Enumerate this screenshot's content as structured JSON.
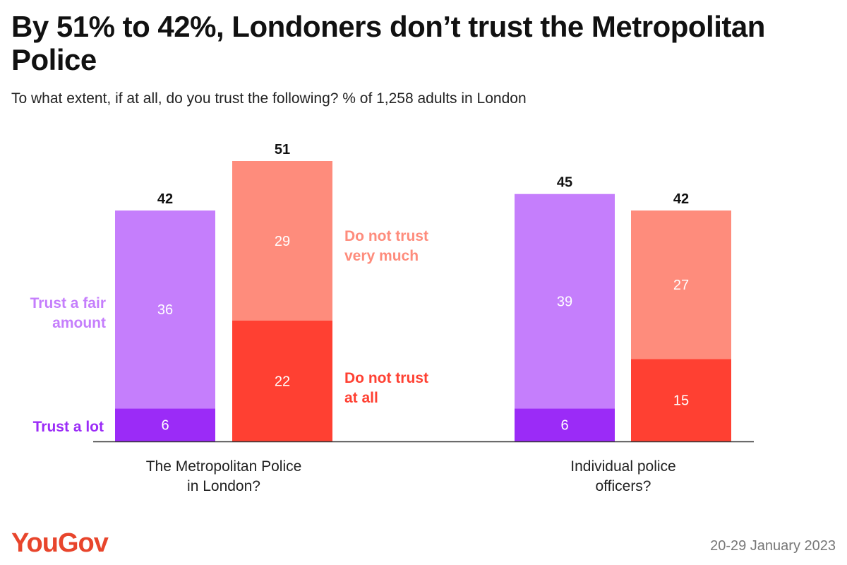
{
  "header": {
    "title": "By 51% to 42%, Londoners don’t trust the Metropolitan Police",
    "subtitle": "To what extent, if at all, do you trust the following? % of 1,258 adults in London"
  },
  "footer": {
    "logo": "YouGov",
    "date": "20-29 January 2023"
  },
  "colors": {
    "trust_a_lot": "#9b2bf7",
    "trust_a_fair_amount": "#c57efc",
    "do_not_trust_very_much": "#fe8c7c",
    "do_not_trust_at_all": "#ff4032",
    "logo": "#e8452c"
  },
  "chart_data": {
    "type": "bar",
    "stacked": true,
    "categories": [
      "The Metropolitan Police in London?",
      "Individual police officers?"
    ],
    "category_lines": [
      [
        "The Metropolitan Police",
        "in London?"
      ],
      [
        "Individual police",
        "officers?"
      ]
    ],
    "groups": [
      {
        "name": "Trust",
        "totals": [
          42,
          45
        ],
        "segments": [
          {
            "name": "Trust a lot",
            "legend_lines": [
              "Trust a lot"
            ],
            "values": [
              6,
              6
            ]
          },
          {
            "name": "Trust a fair amount",
            "legend_lines": [
              "Trust a fair",
              "amount"
            ],
            "values": [
              36,
              39
            ]
          }
        ]
      },
      {
        "name": "Do not trust",
        "totals": [
          51,
          42
        ],
        "segments": [
          {
            "name": "Do not trust at all",
            "legend_lines": [
              "Do not trust",
              "at all"
            ],
            "values": [
              22,
              15
            ]
          },
          {
            "name": "Do not trust very much",
            "legend_lines": [
              "Do not trust",
              "very much"
            ],
            "values": [
              29,
              27
            ]
          }
        ]
      }
    ],
    "ylim": [
      0,
      51
    ],
    "xlabel": "",
    "ylabel": "",
    "grid": false,
    "legend": "inline labels beside the first category's bars"
  }
}
